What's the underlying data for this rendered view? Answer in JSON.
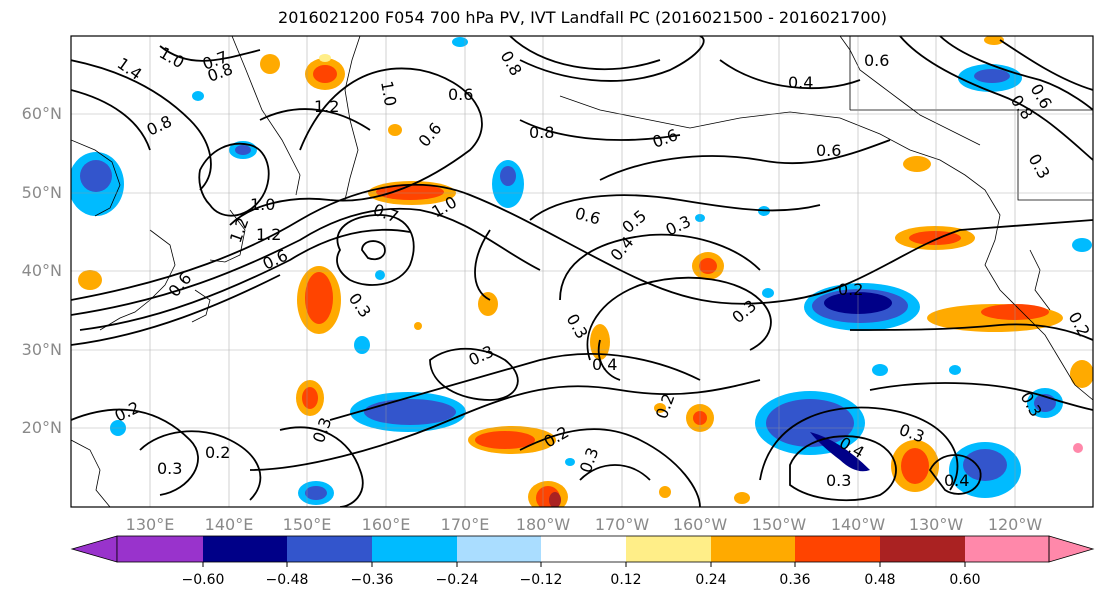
{
  "title": "2016021200 F054 700 hPa PV, IVT Landfall PC (2016021500 - 2016021700)",
  "lat_labels": [
    "60°N",
    "50°N",
    "40°N",
    "30°N",
    "20°N"
  ],
  "lon_labels": [
    "130°E",
    "140°E",
    "150°E",
    "160°E",
    "170°E",
    "180°W",
    "170°W",
    "160°W",
    "150°W",
    "140°W",
    "130°W",
    "120°W"
  ],
  "colorbar": {
    "labels": [
      "−0.60",
      "−0.48",
      "−0.36",
      "−0.24",
      "−0.12",
      "0.12",
      "0.24",
      "0.36",
      "0.48",
      "0.60"
    ],
    "colors": [
      "#9933cc",
      "#000088",
      "#3355cc",
      "#00bbff",
      "#aaddff",
      "#ffffff",
      "#ffee88",
      "#ffaa00",
      "#ff4400",
      "#aa2222",
      "#ff88aa"
    ]
  },
  "contour_labels": [
    "1.4",
    "1.0",
    "0.7",
    "0.8",
    "1.2",
    "1.0",
    "0.8",
    "0.6",
    "1.2",
    "0.8",
    "0.6",
    "0.6",
    "0.8",
    "0.6",
    "0.4",
    "0.6",
    "0.3",
    "0.6",
    "0.7",
    "1.0",
    "1.0",
    "1.2",
    "0.6",
    "0.3",
    "0.6",
    "0.5",
    "0.4",
    "0.3",
    "0.3",
    "0.3",
    "0.4",
    "0.3",
    "0.2",
    "0.2",
    "0.2",
    "0.3",
    "0.2",
    "0.3",
    "0.4",
    "0.3",
    "0.3",
    "0.4",
    "0.2",
    "0.3",
    "0.2",
    "0.3",
    "0.8",
    "0.6"
  ]
}
